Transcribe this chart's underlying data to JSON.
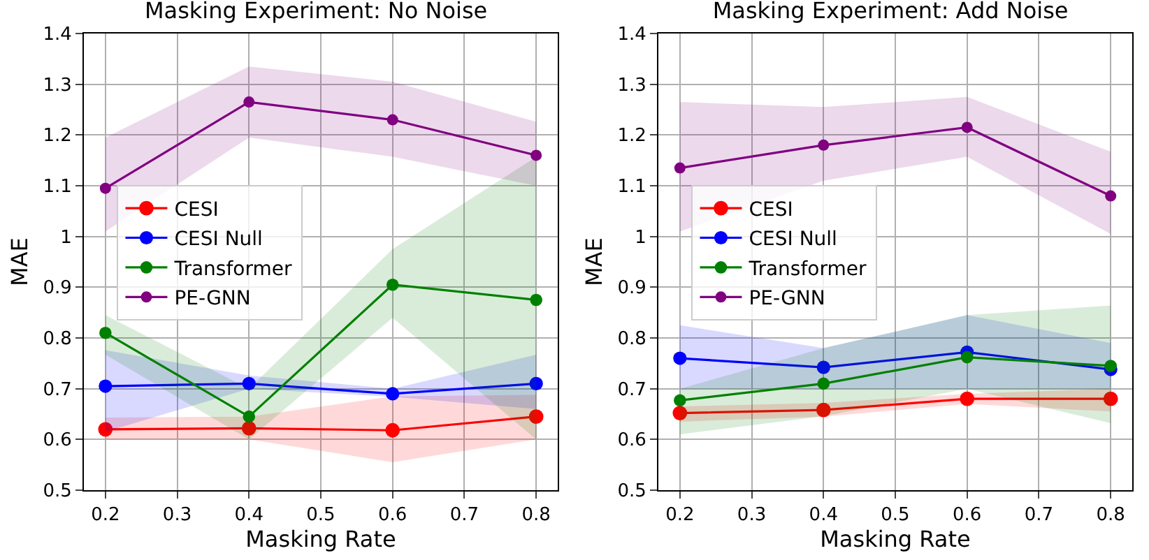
{
  "chart_data": [
    {
      "type": "line",
      "title": "Masking Experiment: No Noise",
      "xlabel": "Masking Rate",
      "ylabel": "MAE",
      "x": [
        0.2,
        0.4,
        0.6,
        0.8
      ],
      "xlim": [
        0.17,
        0.83
      ],
      "xticks": [
        0.2,
        0.3,
        0.4,
        0.5,
        0.6,
        0.7,
        0.8
      ],
      "ylim": [
        0.5,
        1.4
      ],
      "yticks": [
        0.5,
        0.6,
        0.7,
        0.8,
        0.9,
        1.0,
        1.1,
        1.2,
        1.3,
        1.4
      ],
      "grid": true,
      "legend": "left",
      "marker": "circle",
      "series": [
        {
          "name": "CESI",
          "color": "#ff0000",
          "values": [
            0.62,
            0.622,
            0.618,
            0.645
          ],
          "lower": [
            0.6,
            0.6,
            0.555,
            0.6
          ],
          "upper": [
            0.643,
            0.645,
            0.685,
            0.688
          ]
        },
        {
          "name": "CESI Null",
          "color": "#0000ff",
          "values": [
            0.705,
            0.71,
            0.69,
            0.71
          ],
          "lower": [
            0.615,
            0.7,
            0.684,
            0.66
          ],
          "upper": [
            0.776,
            0.726,
            0.7,
            0.767
          ]
        },
        {
          "name": "Transformer",
          "color": "#008000",
          "values": [
            0.81,
            0.645,
            0.905,
            0.875
          ],
          "lower": [
            0.767,
            0.6,
            0.84,
            0.6
          ],
          "upper": [
            0.845,
            0.7,
            0.975,
            1.157
          ]
        },
        {
          "name": "PE-GNN",
          "color": "#800080",
          "values": [
            1.095,
            1.265,
            1.23,
            1.16
          ],
          "lower": [
            1.01,
            1.195,
            1.157,
            1.1
          ],
          "upper": [
            1.195,
            1.335,
            1.305,
            1.226
          ]
        }
      ]
    },
    {
      "type": "line",
      "title": "Masking Experiment: Add Noise",
      "xlabel": "Masking Rate",
      "ylabel": "MAE",
      "x": [
        0.2,
        0.4,
        0.6,
        0.8
      ],
      "xlim": [
        0.17,
        0.83
      ],
      "xticks": [
        0.2,
        0.3,
        0.4,
        0.5,
        0.6,
        0.7,
        0.8
      ],
      "ylim": [
        0.5,
        1.4
      ],
      "yticks": [
        0.5,
        0.6,
        0.7,
        0.8,
        0.9,
        1.0,
        1.1,
        1.2,
        1.3,
        1.4
      ],
      "grid": true,
      "legend": "left",
      "marker": "circle",
      "series": [
        {
          "name": "CESI",
          "color": "#ff0000",
          "values": [
            0.652,
            0.658,
            0.68,
            0.68
          ],
          "lower": [
            0.635,
            0.645,
            0.67,
            0.655
          ],
          "upper": [
            0.665,
            0.672,
            0.69,
            0.7
          ]
        },
        {
          "name": "CESI Null",
          "color": "#0000ff",
          "values": [
            0.76,
            0.742,
            0.772,
            0.738
          ],
          "lower": [
            0.7,
            0.7,
            0.7,
            0.7
          ],
          "upper": [
            0.825,
            0.78,
            0.845,
            0.79
          ]
        },
        {
          "name": "Transformer",
          "color": "#008000",
          "values": [
            0.677,
            0.71,
            0.762,
            0.745
          ],
          "lower": [
            0.61,
            0.646,
            0.7,
            0.632
          ],
          "upper": [
            0.7,
            0.78,
            0.845,
            0.864
          ]
        },
        {
          "name": "PE-GNN",
          "color": "#800080",
          "values": [
            1.135,
            1.18,
            1.215,
            1.08
          ],
          "lower": [
            1.01,
            1.11,
            1.157,
            1.005
          ],
          "upper": [
            1.265,
            1.255,
            1.275,
            1.167
          ]
        }
      ]
    }
  ]
}
